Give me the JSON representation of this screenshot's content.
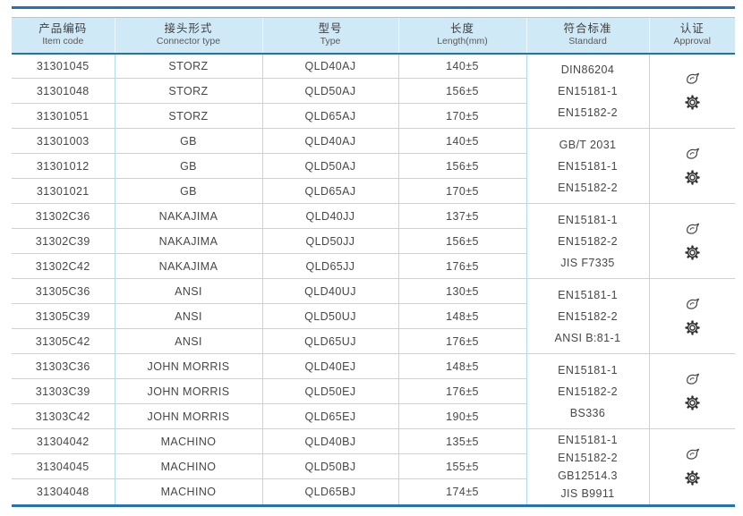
{
  "table": {
    "columns": [
      {
        "key": "item_code",
        "zh": "产品编码",
        "en": "Item code"
      },
      {
        "key": "connector_type",
        "zh": "接头形式",
        "en": "Connector type"
      },
      {
        "key": "type",
        "zh": "型号",
        "en": "Type"
      },
      {
        "key": "length",
        "zh": "长度",
        "en": "Length(mm)"
      },
      {
        "key": "standard",
        "zh": "符合标准",
        "en": "Standard"
      },
      {
        "key": "approval",
        "zh": "认证",
        "en": "Approval"
      }
    ],
    "groups": [
      {
        "rows": [
          {
            "item_code": "31301045",
            "connector_type": "STORZ",
            "type": "QLD40AJ",
            "length": "140±5"
          },
          {
            "item_code": "31301048",
            "connector_type": "STORZ",
            "type": "QLD50AJ",
            "length": "156±5"
          },
          {
            "item_code": "31301051",
            "connector_type": "STORZ",
            "type": "QLD65AJ",
            "length": "170±5"
          }
        ],
        "standards": [
          "DIN86204",
          "EN15181-1",
          "EN15182-2"
        ],
        "approval_icons": [
          "certificate-stamp-icon",
          "gear-seal-icon"
        ]
      },
      {
        "rows": [
          {
            "item_code": "31301003",
            "connector_type": "GB",
            "type": "QLD40AJ",
            "length": "140±5"
          },
          {
            "item_code": "31301012",
            "connector_type": "GB",
            "type": "QLD50AJ",
            "length": "156±5"
          },
          {
            "item_code": "31301021",
            "connector_type": "GB",
            "type": "QLD65AJ",
            "length": "170±5"
          }
        ],
        "standards": [
          "GB/T 2031",
          "EN15181-1",
          "EN15182-2"
        ],
        "approval_icons": [
          "certificate-stamp-icon",
          "gear-seal-icon"
        ]
      },
      {
        "rows": [
          {
            "item_code": "31302C36",
            "connector_type": "NAKAJIMA",
            "type": "QLD40JJ",
            "length": "137±5"
          },
          {
            "item_code": "31302C39",
            "connector_type": "NAKAJIMA",
            "type": "QLD50JJ",
            "length": "156±5"
          },
          {
            "item_code": "31302C42",
            "connector_type": "NAKAJIMA",
            "type": "QLD65JJ",
            "length": "176±5"
          }
        ],
        "standards": [
          "EN15181-1",
          "EN15182-2",
          "JIS F7335"
        ],
        "approval_icons": [
          "certificate-stamp-icon",
          "gear-seal-icon"
        ]
      },
      {
        "rows": [
          {
            "item_code": "31305C36",
            "connector_type": "ANSI",
            "type": "QLD40UJ",
            "length": "130±5"
          },
          {
            "item_code": "31305C39",
            "connector_type": "ANSI",
            "type": "QLD50UJ",
            "length": "148±5"
          },
          {
            "item_code": "31305C42",
            "connector_type": "ANSI",
            "type": "QLD65UJ",
            "length": "176±5"
          }
        ],
        "standards": [
          "EN15181-1",
          "EN15182-2",
          "ANSI B:81-1"
        ],
        "approval_icons": [
          "certificate-stamp-icon",
          "gear-seal-icon"
        ]
      },
      {
        "rows": [
          {
            "item_code": "31303C36",
            "connector_type": "JOHN MORRIS",
            "type": "QLD40EJ",
            "length": "148±5"
          },
          {
            "item_code": "31303C39",
            "connector_type": "JOHN MORRIS",
            "type": "QLD50EJ",
            "length": "176±5"
          },
          {
            "item_code": "31303C42",
            "connector_type": "JOHN MORRIS",
            "type": "QLD65EJ",
            "length": "190±5"
          }
        ],
        "standards": [
          "EN15181-1",
          "EN15182-2",
          "BS336"
        ],
        "approval_icons": [
          "certificate-stamp-icon",
          "gear-seal-icon"
        ]
      },
      {
        "rows": [
          {
            "item_code": "31304042",
            "connector_type": "MACHINO",
            "type": "QLD40BJ",
            "length": "135±5"
          },
          {
            "item_code": "31304045",
            "connector_type": "MACHINO",
            "type": "QLD50BJ",
            "length": "155±5"
          },
          {
            "item_code": "31304048",
            "connector_type": "MACHINO",
            "type": "QLD65BJ",
            "length": "174±5"
          }
        ],
        "standards": [
          "EN15181-1",
          "EN15182-2",
          "GB12514.3",
          "JIS B9911"
        ],
        "approval_icons": [
          "certificate-stamp-icon",
          "gear-seal-icon"
        ]
      }
    ]
  },
  "colors": {
    "rule_blue": "#2471b5",
    "header_background": "#cfe9f7",
    "row_line_blue": "#aeddf1",
    "text": "#474747"
  }
}
